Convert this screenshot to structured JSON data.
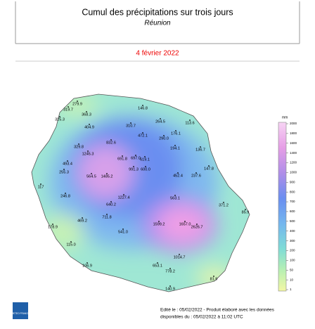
{
  "header": {
    "title": "Cumul des précipitations sur trois jours",
    "subtitle": "Réunion",
    "date": "4 février 2022"
  },
  "stations": [
    "279.9",
    "319.7",
    "325.3",
    "368.3",
    "146.8",
    "264.5",
    "113.6",
    "404.9",
    "310.7",
    "472.1",
    "176.1",
    "290.0",
    "832.6",
    "329.8",
    "194.1",
    "136.7",
    "691.8",
    "697.0",
    "619.1",
    "1245.3",
    "493.4",
    "991.3",
    "600.0",
    "147.8",
    "255.3",
    "564.5",
    "1485.2",
    "452.4",
    "237.6",
    "117",
    "246.8",
    "1227.4",
    "563.1",
    "371.2",
    "640.2",
    "85.9",
    "711.8",
    "469.2",
    "1599.2",
    "1657.0",
    "2626.7",
    "541.0",
    "178.9",
    "115.0",
    "1014.7",
    "653.1",
    "106.9",
    "778.2",
    "81.9",
    "140.9"
  ],
  "legend": {
    "unit": "mm",
    "ticks": [
      "2000",
      "1800",
      "1600",
      "1400",
      "1200",
      "1000",
      "900",
      "800",
      "700",
      "600",
      "500",
      "400",
      "300",
      "200",
      "100",
      "50",
      "10",
      "1"
    ]
  },
  "footer": {
    "line1": "Edité le : 05/02/2022 - Produit élaboré avec les données",
    "line2": "disponibles du : 05/02/2022 à 11:02 UTC",
    "logo": "METEO FRANCE"
  }
}
